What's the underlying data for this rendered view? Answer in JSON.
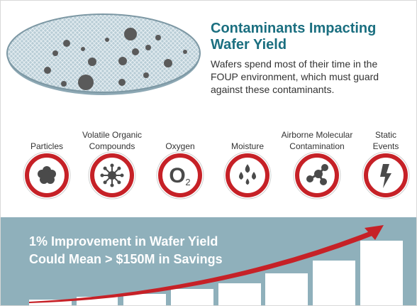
{
  "header": {
    "title": "Contaminants Impacting Wafer Yield",
    "description": "Wafers spend most of their time in the FOUP environment, which must guard against these contaminants."
  },
  "contaminants": [
    {
      "label": [
        "Particles"
      ]
    },
    {
      "label": [
        "Volatile Organic",
        "Compounds"
      ]
    },
    {
      "label": [
        "Oxygen"
      ],
      "symbol": "O",
      "subscript": "2"
    },
    {
      "label": [
        "Moisture"
      ]
    },
    {
      "label": [
        "Airborne Molecular",
        "Contamination"
      ]
    },
    {
      "label": [
        "Static",
        "Events"
      ]
    }
  ],
  "banner": {
    "lines": [
      "1% Improvement in Wafer Yield",
      "Could Mean > $150M in Savings"
    ]
  }
}
